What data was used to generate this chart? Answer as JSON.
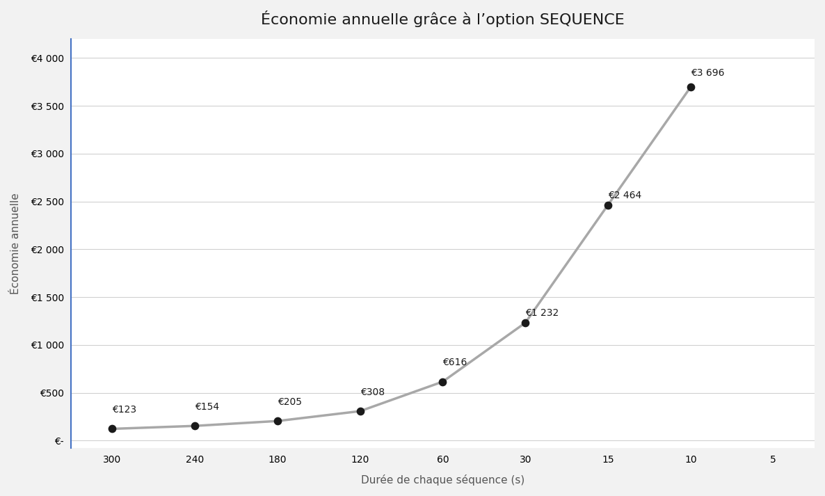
{
  "title": "Économie annuelle grâce à l’option SEQUENCE",
  "xlabel": "Durée de chaque séquence (s)",
  "ylabel": "Économie annuelle",
  "x_categories": [
    "300",
    "240",
    "180",
    "120",
    "60",
    "30",
    "15",
    "10",
    "5"
  ],
  "x_data_indices": [
    0,
    1,
    2,
    3,
    4,
    5,
    6,
    7
  ],
  "y_values": [
    123,
    154,
    205,
    308,
    616,
    1232,
    2464,
    3696
  ],
  "labels": [
    "€123",
    "€154",
    "€205",
    "€308",
    "€616",
    "€1 232",
    "€2 464",
    "€3 696"
  ],
  "label_ha": [
    "left",
    "left",
    "left",
    "left",
    "left",
    "left",
    "left",
    "left"
  ],
  "y_ticks": [
    0,
    500,
    1000,
    1500,
    2000,
    2500,
    3000,
    3500,
    4000
  ],
  "y_tick_labels": [
    "€-",
    "€500",
    "€1 000",
    "€1 500",
    "€2 000",
    "€2 500",
    "€3 000",
    "€3 500",
    "€4 000"
  ],
  "line_color": "#a8a8a8",
  "marker_color": "#1a1a1a",
  "background_color": "#f2f2f2",
  "plot_bg_color": "#ffffff",
  "spine_color": "#4472c4",
  "title_fontsize": 16,
  "label_fontsize": 11,
  "tick_fontsize": 10,
  "annotation_fontsize": 10,
  "ylim_min": -80,
  "ylim_max": 4200
}
